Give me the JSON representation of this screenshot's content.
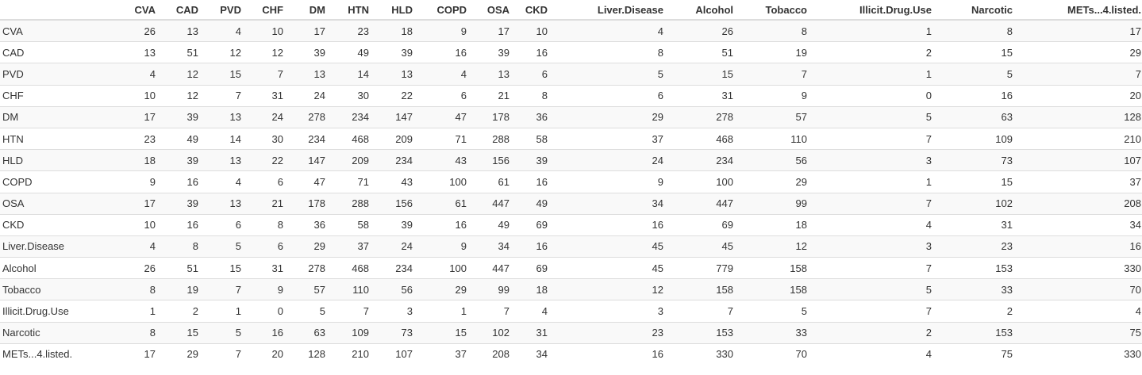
{
  "table": {
    "corner": "",
    "columns": [
      "CVA",
      "CAD",
      "PVD",
      "CHF",
      "DM",
      "HTN",
      "HLD",
      "COPD",
      "OSA",
      "CKD",
      "Liver.Disease",
      "Alcohol",
      "Tobacco",
      "Illicit.Drug.Use",
      "Narcotic",
      "METs...4.listed."
    ],
    "rows": [
      {
        "label": "CVA",
        "values": [
          "26",
          "13",
          "4",
          "10",
          "17",
          "23",
          "18",
          "9",
          "17",
          "10",
          "4",
          "26",
          "8",
          "1",
          "8",
          "17"
        ]
      },
      {
        "label": "CAD",
        "values": [
          "13",
          "51",
          "12",
          "12",
          "39",
          "49",
          "39",
          "16",
          "39",
          "16",
          "8",
          "51",
          "19",
          "2",
          "15",
          "29"
        ]
      },
      {
        "label": "PVD",
        "values": [
          "4",
          "12",
          "15",
          "7",
          "13",
          "14",
          "13",
          "4",
          "13",
          "6",
          "5",
          "15",
          "7",
          "1",
          "5",
          "7"
        ]
      },
      {
        "label": "CHF",
        "values": [
          "10",
          "12",
          "7",
          "31",
          "24",
          "30",
          "22",
          "6",
          "21",
          "8",
          "6",
          "31",
          "9",
          "0",
          "16",
          "20"
        ]
      },
      {
        "label": "DM",
        "values": [
          "17",
          "39",
          "13",
          "24",
          "278",
          "234",
          "147",
          "47",
          "178",
          "36",
          "29",
          "278",
          "57",
          "5",
          "63",
          "128"
        ]
      },
      {
        "label": "HTN",
        "values": [
          "23",
          "49",
          "14",
          "30",
          "234",
          "468",
          "209",
          "71",
          "288",
          "58",
          "37",
          "468",
          "110",
          "7",
          "109",
          "210"
        ]
      },
      {
        "label": "HLD",
        "values": [
          "18",
          "39",
          "13",
          "22",
          "147",
          "209",
          "234",
          "43",
          "156",
          "39",
          "24",
          "234",
          "56",
          "3",
          "73",
          "107"
        ]
      },
      {
        "label": "COPD",
        "values": [
          "9",
          "16",
          "4",
          "6",
          "47",
          "71",
          "43",
          "100",
          "61",
          "16",
          "9",
          "100",
          "29",
          "1",
          "15",
          "37"
        ]
      },
      {
        "label": "OSA",
        "values": [
          "17",
          "39",
          "13",
          "21",
          "178",
          "288",
          "156",
          "61",
          "447",
          "49",
          "34",
          "447",
          "99",
          "7",
          "102",
          "208"
        ]
      },
      {
        "label": "CKD",
        "values": [
          "10",
          "16",
          "6",
          "8",
          "36",
          "58",
          "39",
          "16",
          "49",
          "69",
          "16",
          "69",
          "18",
          "4",
          "31",
          "34"
        ]
      },
      {
        "label": "Liver.Disease",
        "values": [
          "4",
          "8",
          "5",
          "6",
          "29",
          "37",
          "24",
          "9",
          "34",
          "16",
          "45",
          "45",
          "12",
          "3",
          "23",
          "16"
        ]
      },
      {
        "label": "Alcohol",
        "values": [
          "26",
          "51",
          "15",
          "31",
          "278",
          "468",
          "234",
          "100",
          "447",
          "69",
          "45",
          "779",
          "158",
          "7",
          "153",
          "330"
        ]
      },
      {
        "label": "Tobacco",
        "values": [
          "8",
          "19",
          "7",
          "9",
          "57",
          "110",
          "56",
          "29",
          "99",
          "18",
          "12",
          "158",
          "158",
          "5",
          "33",
          "70"
        ]
      },
      {
        "label": "Illicit.Drug.Use",
        "values": [
          "1",
          "2",
          "1",
          "0",
          "5",
          "7",
          "3",
          "1",
          "7",
          "4",
          "3",
          "7",
          "5",
          "7",
          "2",
          "4"
        ]
      },
      {
        "label": "Narcotic",
        "values": [
          "8",
          "15",
          "5",
          "16",
          "63",
          "109",
          "73",
          "15",
          "102",
          "31",
          "23",
          "153",
          "33",
          "2",
          "153",
          "75"
        ]
      },
      {
        "label": "METs...4.listed.",
        "values": [
          "17",
          "29",
          "7",
          "20",
          "128",
          "210",
          "107",
          "37",
          "208",
          "34",
          "16",
          "330",
          "70",
          "4",
          "75",
          "330"
        ]
      }
    ]
  }
}
